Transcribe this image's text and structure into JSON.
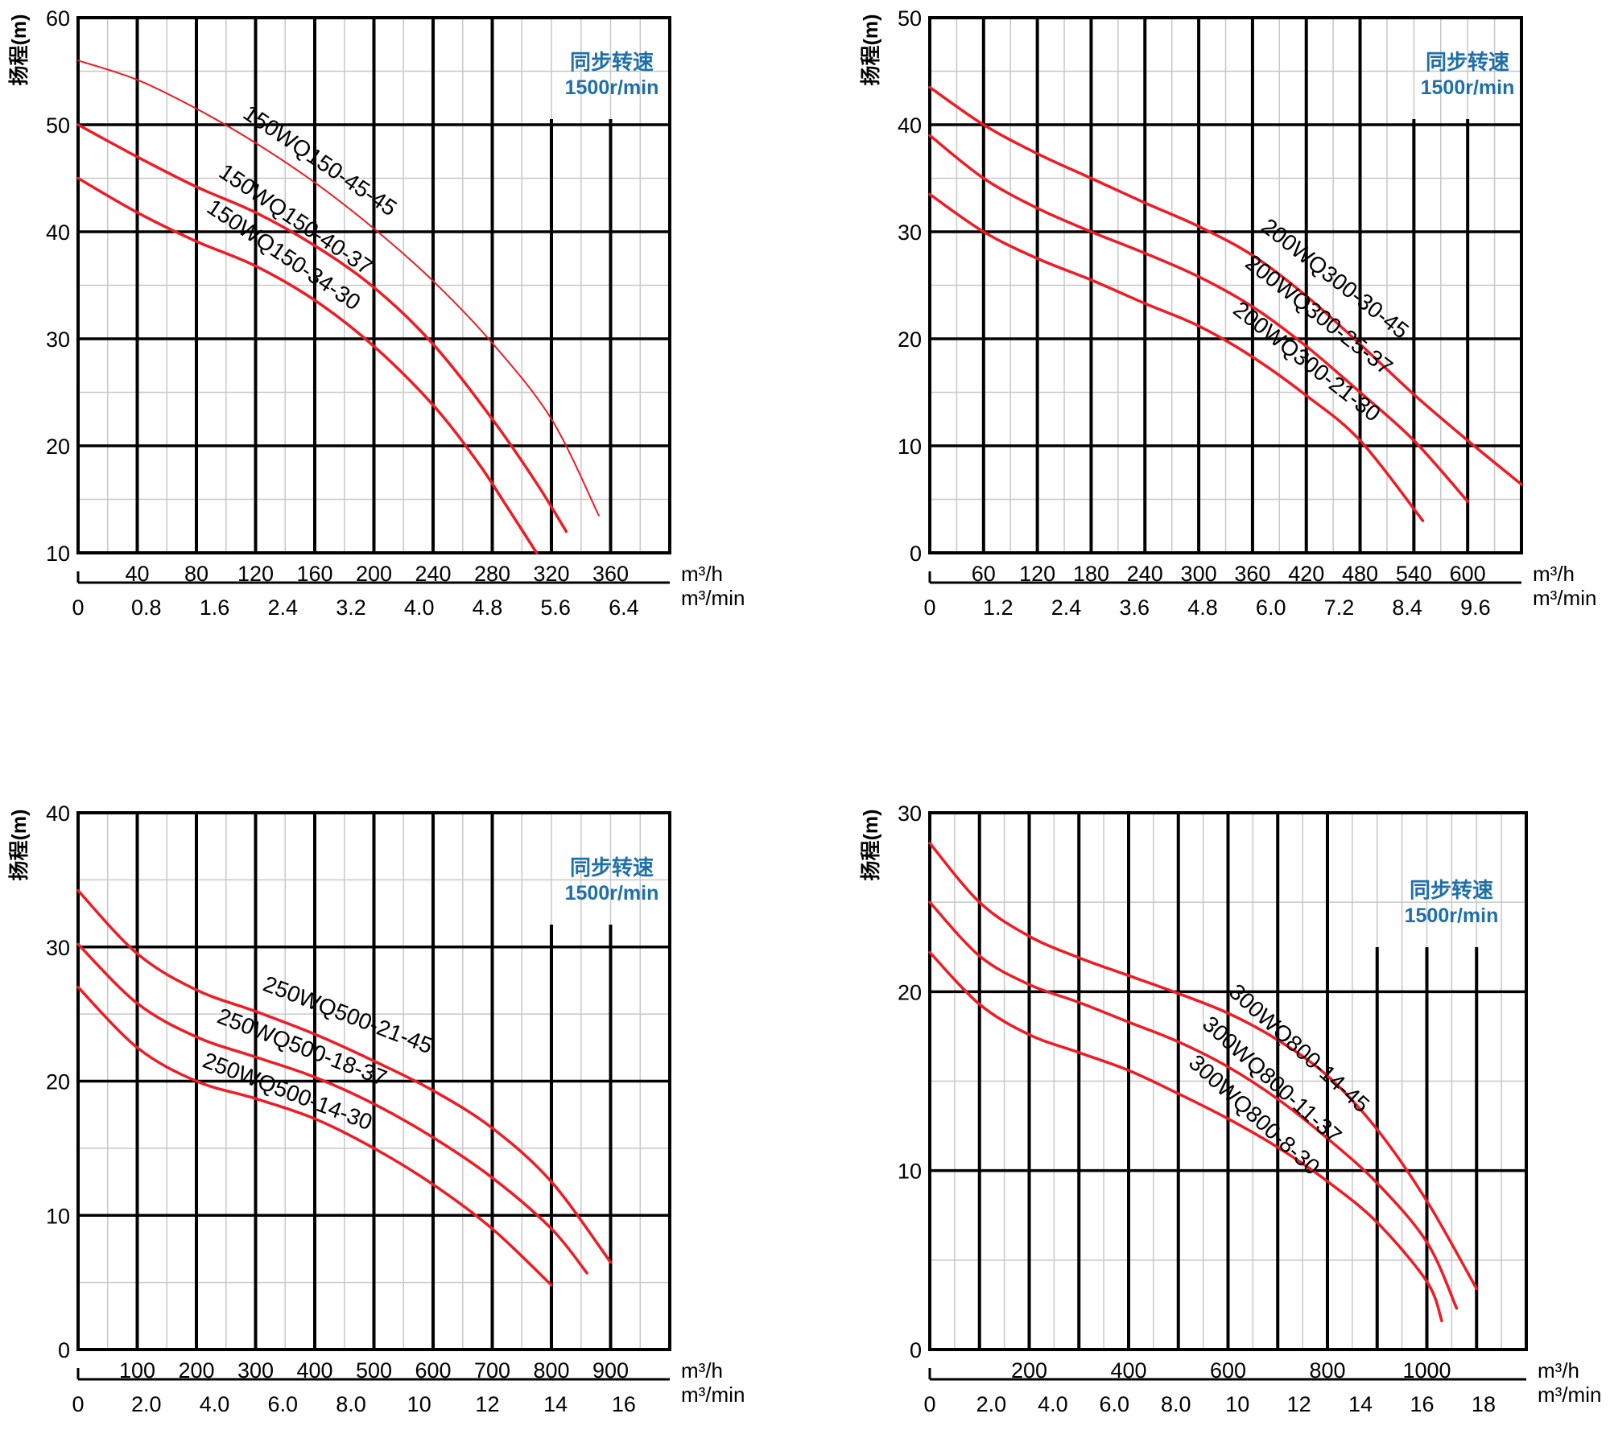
{
  "colors": {
    "curve": "#ee1c24",
    "badge_text": "#1f6fa8",
    "grid_major": "#000000",
    "grid_minor": "#c8c8c8",
    "text": "#000000"
  },
  "chart_data": [
    {
      "type": "line",
      "ylabel": "扬程(m)",
      "xlabel": "m³/h",
      "x2label": "m³/min",
      "speed_label": "同步转速",
      "speed_value": "1500r/min",
      "ylim": [
        10,
        60
      ],
      "yticks": [
        "10",
        "20",
        "30",
        "40",
        "50",
        "60"
      ],
      "xlim": [
        0,
        400
      ],
      "xticks": [
        "40",
        "80",
        "120",
        "160",
        "200",
        "240",
        "280",
        "320",
        "360"
      ],
      "x2ticks": [
        "0",
        "0.8",
        "1.6",
        "2.4",
        "3.2",
        "4.0",
        "4.8",
        "5.6",
        "6.4"
      ],
      "series": [
        {
          "name": "150WQ150-45-45",
          "x": [
            0,
            40,
            80,
            120,
            160,
            200,
            240,
            280,
            320,
            352
          ],
          "y": [
            56,
            54.2,
            51.5,
            48.3,
            44.6,
            40.3,
            35.4,
            29.6,
            22.5,
            13.5
          ]
        },
        {
          "name": "150WQ150-40-37",
          "x": [
            0,
            40,
            80,
            120,
            160,
            200,
            240,
            280,
            310,
            330
          ],
          "y": [
            50,
            47,
            44.2,
            41.8,
            38.7,
            34.8,
            29.5,
            22.5,
            16.5,
            12
          ]
        },
        {
          "name": "150WQ150-34-30",
          "x": [
            0,
            40,
            80,
            120,
            160,
            200,
            240,
            270,
            290,
            310
          ],
          "y": [
            45,
            41.8,
            39.1,
            36.8,
            33.6,
            29.3,
            23.8,
            18.5,
            14.3,
            10
          ]
        }
      ]
    },
    {
      "type": "line",
      "ylabel": "扬程(m)",
      "xlabel": "m³/h",
      "x2label": "m³/min",
      "speed_label": "同步转速",
      "speed_value": "1500r/min",
      "ylim": [
        0,
        50
      ],
      "yticks": [
        "0",
        "10",
        "20",
        "30",
        "40",
        "50"
      ],
      "xlim": [
        0,
        660
      ],
      "xticks": [
        "60",
        "120",
        "180",
        "240",
        "300",
        "360",
        "420",
        "480",
        "540",
        "600"
      ],
      "x2ticks": [
        "0",
        "1.2",
        "2.4",
        "3.6",
        "4.8",
        "6.0",
        "7.2",
        "8.4",
        "9.6"
      ],
      "series": [
        {
          "name": "200WQ300-30-45",
          "x": [
            0,
            60,
            120,
            180,
            240,
            300,
            360,
            420,
            480,
            540,
            600,
            660
          ],
          "y": [
            43.5,
            40,
            37.3,
            35,
            32.7,
            30.5,
            27.8,
            24,
            19.5,
            14.8,
            10.5,
            6.4
          ]
        },
        {
          "name": "200WQ300-25-37",
          "x": [
            0,
            60,
            120,
            180,
            240,
            300,
            360,
            420,
            480,
            540,
            600
          ],
          "y": [
            39,
            35,
            32.2,
            30,
            28,
            25.8,
            23,
            19.3,
            15,
            10.5,
            4.8
          ]
        },
        {
          "name": "200WQ300-21-30",
          "x": [
            0,
            60,
            120,
            180,
            240,
            300,
            360,
            420,
            480,
            550
          ],
          "y": [
            33.5,
            30,
            27.5,
            25.5,
            23.3,
            21.2,
            18.3,
            14.7,
            10.5,
            3
          ]
        }
      ]
    },
    {
      "type": "line",
      "ylabel": "扬程(m)",
      "xlabel": "m³/h",
      "x2label": "m³/min",
      "speed_label": "同步转速",
      "speed_value": "1500r/min",
      "ylim": [
        0,
        40
      ],
      "yticks": [
        "0",
        "10",
        "20",
        "30",
        "40"
      ],
      "xlim": [
        0,
        1000
      ],
      "xticks": [
        "100",
        "200",
        "300",
        "400",
        "500",
        "600",
        "700",
        "800",
        "900"
      ],
      "x2ticks": [
        "0",
        "2.0",
        "4.0",
        "6.0",
        "8.0",
        "10",
        "12",
        "14",
        "16"
      ],
      "series": [
        {
          "name": "250WQ500-21-45",
          "x": [
            0,
            100,
            200,
            300,
            400,
            500,
            600,
            700,
            800,
            900
          ],
          "y": [
            34.2,
            29.5,
            26.8,
            25.2,
            23.5,
            21.5,
            19.3,
            16.5,
            12.5,
            6.5
          ]
        },
        {
          "name": "250WQ500-18-37",
          "x": [
            0,
            100,
            200,
            300,
            400,
            500,
            600,
            700,
            800,
            860
          ],
          "y": [
            30.2,
            25.8,
            23.3,
            21.8,
            20.3,
            18.3,
            15.8,
            12.8,
            9,
            5.7
          ]
        },
        {
          "name": "250WQ500-14-30",
          "x": [
            0,
            100,
            200,
            300,
            400,
            500,
            600,
            700,
            800
          ],
          "y": [
            27,
            22.5,
            20,
            18.7,
            17.2,
            15,
            12.3,
            9,
            4.8
          ]
        }
      ]
    },
    {
      "type": "line",
      "ylabel": "扬程(m)",
      "xlabel": "m³/h",
      "x2label": "m³/min",
      "speed_label": "同步转速",
      "speed_value": "1500r/min",
      "ylim": [
        0,
        30
      ],
      "yticks": [
        "0",
        "10",
        "20",
        "30"
      ],
      "xlim": [
        0,
        1200
      ],
      "xticks": [
        "200",
        "400",
        "600",
        "800",
        "1000"
      ],
      "x2ticks": [
        "0",
        "2.0",
        "4.0",
        "6.0",
        "8.0",
        "10",
        "12",
        "14",
        "16",
        "18"
      ],
      "series": [
        {
          "name": "300WQ800-14-45",
          "x": [
            0,
            100,
            200,
            300,
            400,
            500,
            600,
            700,
            800,
            900,
            1000,
            1100
          ],
          "y": [
            28.3,
            25,
            23.1,
            21.9,
            20.9,
            19.9,
            18.8,
            17.3,
            15.3,
            12.3,
            8.3,
            3.4
          ]
        },
        {
          "name": "300WQ800-11-37",
          "x": [
            0,
            100,
            200,
            300,
            400,
            500,
            600,
            700,
            800,
            900,
            1000,
            1060
          ],
          "y": [
            25,
            22,
            20.4,
            19.4,
            18.3,
            17.2,
            15.8,
            14,
            11.8,
            9.3,
            6,
            2.3
          ]
        },
        {
          "name": "300WQ800-8-30",
          "x": [
            0,
            100,
            200,
            300,
            400,
            500,
            600,
            700,
            800,
            900,
            1000,
            1030
          ],
          "y": [
            22.2,
            19.3,
            17.6,
            16.6,
            15.6,
            14.3,
            12.9,
            11.3,
            9.4,
            7.1,
            3.8,
            1.6
          ]
        }
      ]
    }
  ]
}
